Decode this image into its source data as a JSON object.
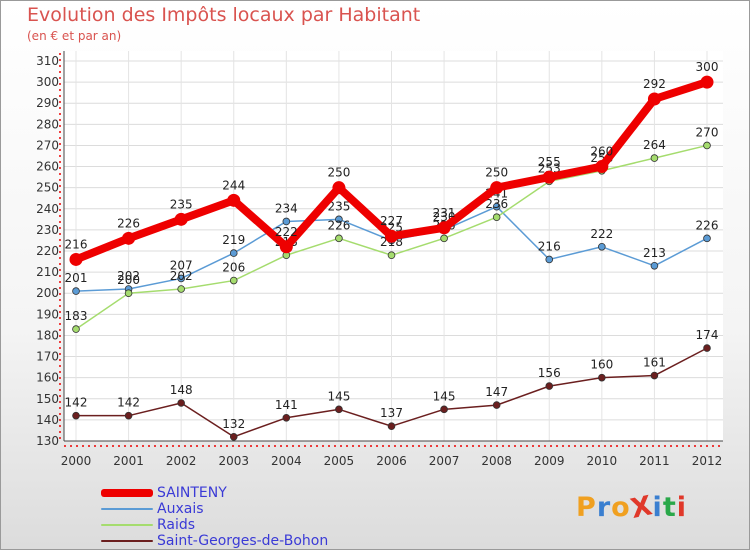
{
  "title": "Evolution des Impôts locaux par Habitant",
  "subtitle": "(en € et par an)",
  "logo": {
    "text": "ProXiti",
    "letter_colors": [
      "#f0a020",
      "#3a7fd0",
      "#f0a020",
      "#e0382a",
      "#3a7fd0",
      "#2aa84a",
      "#e0382a"
    ]
  },
  "chart_data": {
    "type": "line",
    "title": "Evolution des Impôts locaux par Habitant",
    "subtitle": "(en € et par an)",
    "xlabel": "",
    "ylabel": "",
    "x": [
      "2000",
      "2001",
      "2002",
      "2003",
      "2004",
      "2005",
      "2006",
      "2007",
      "2008",
      "2009",
      "2010",
      "2011",
      "2012"
    ],
    "ylim": [
      130,
      310
    ],
    "yticks": [
      130,
      140,
      150,
      160,
      170,
      180,
      190,
      200,
      210,
      220,
      230,
      240,
      250,
      260,
      270,
      280,
      290,
      300,
      310
    ],
    "grid": true,
    "legend": "bottom-left",
    "series": [
      {
        "name": "SAINTENY",
        "values": [
          216,
          226,
          235,
          244,
          222,
          250,
          227,
          231,
          250,
          255,
          260,
          292,
          300
        ],
        "color": "#ee0000",
        "bold": true
      },
      {
        "name": "Auxais",
        "values": [
          201,
          202,
          207,
          219,
          234,
          235,
          225,
          230,
          241,
          216,
          222,
          213,
          226
        ],
        "color": "#5b9bd5",
        "bold": false
      },
      {
        "name": "Raids",
        "values": [
          183,
          200,
          202,
          206,
          218,
          226,
          218,
          226,
          236,
          253,
          258,
          264,
          270
        ],
        "color": "#a5dc6e",
        "bold": false
      },
      {
        "name": "Saint-Georges-de-Bohon",
        "values": [
          142,
          142,
          148,
          132,
          141,
          145,
          137,
          145,
          147,
          156,
          160,
          161,
          174
        ],
        "color": "#6b1f1f",
        "bold": false
      }
    ]
  }
}
